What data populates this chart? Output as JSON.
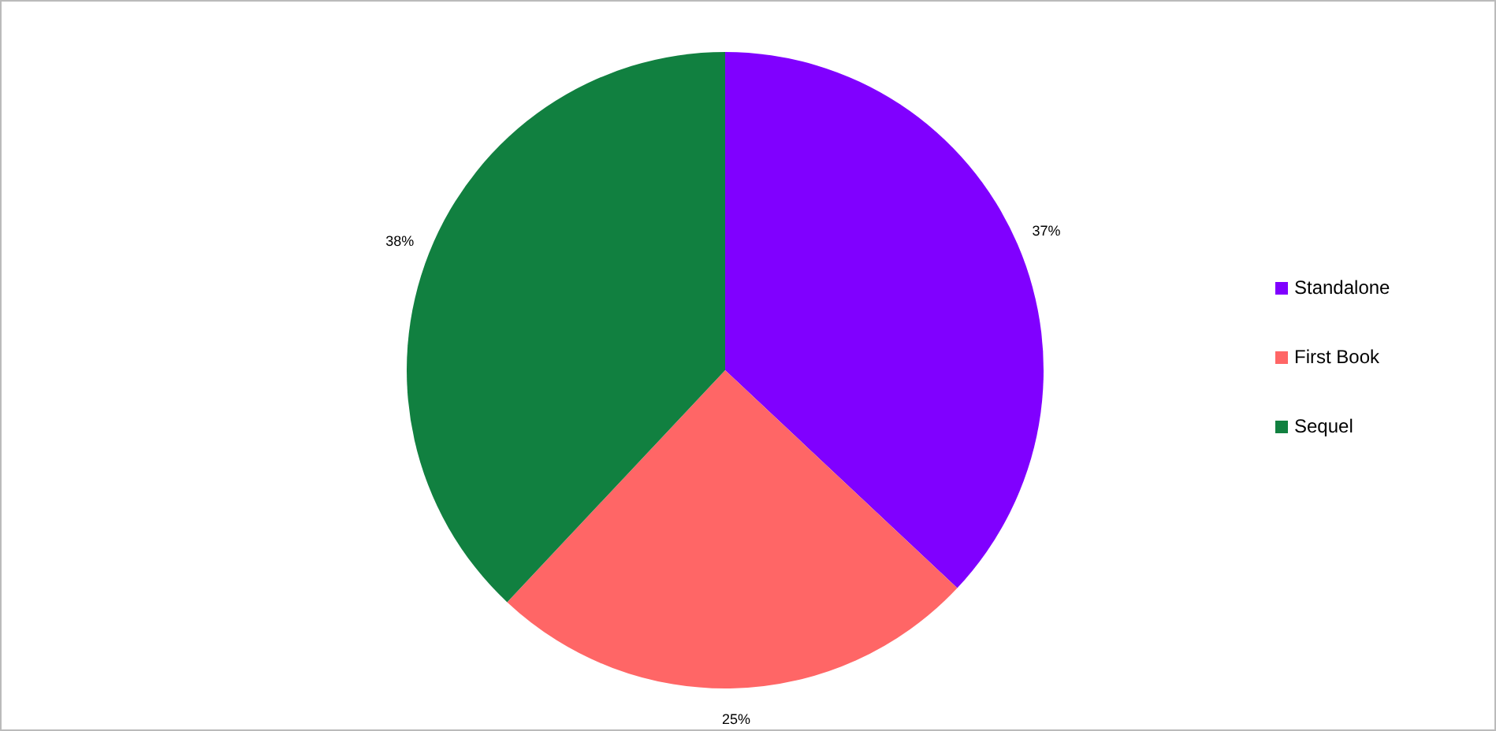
{
  "chart_data": {
    "type": "pie",
    "categories": [
      "Standalone",
      "First Book",
      "Sequel"
    ],
    "values": [
      37,
      25,
      38
    ],
    "colors": [
      "#8000ff",
      "#ff6666",
      "#118040"
    ],
    "value_labels": [
      "37%",
      "25%",
      "38%"
    ],
    "legend": "right"
  }
}
